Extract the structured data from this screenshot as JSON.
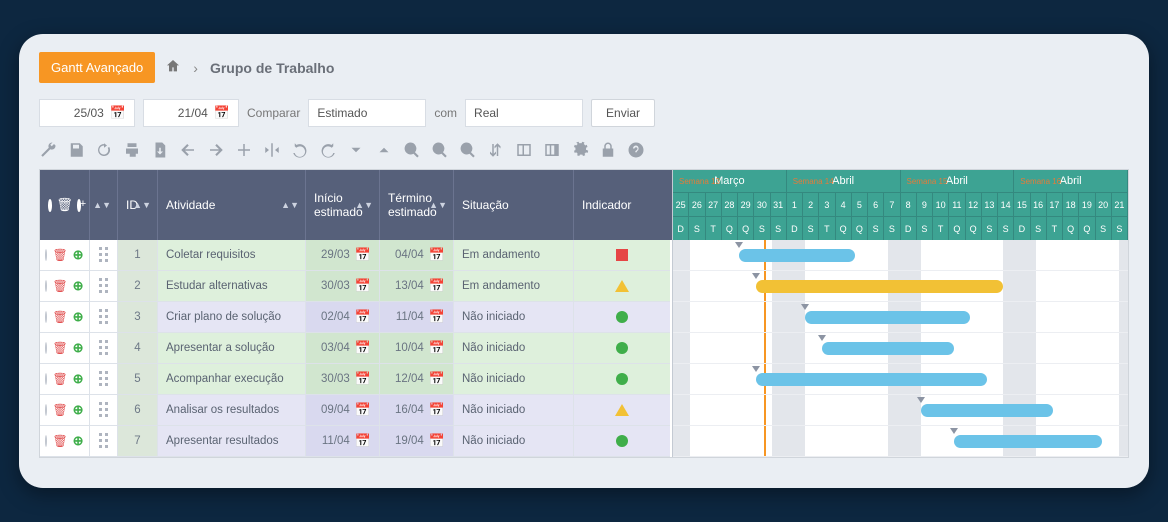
{
  "header": {
    "advanced_button": "Gantt Avançado",
    "breadcrumb": "Grupo de Trabalho"
  },
  "filters": {
    "date_from": "25/03",
    "date_to": "21/04",
    "compare_label": "Comparar",
    "compare_value": "Estimado",
    "with_label": "com",
    "with_value": "Real",
    "send": "Enviar"
  },
  "grid": {
    "columns": {
      "id": "ID",
      "activity": "Atividade",
      "start": "Início estimado",
      "end": "Término estimado",
      "status": "Situação",
      "indicator": "Indicador"
    }
  },
  "rows": [
    {
      "id": "1",
      "activity": "Coletar requisitos",
      "start": "29/03",
      "end": "04/04",
      "status": "Em andamento",
      "indicator": "square",
      "alt": false,
      "bar_color": "blue",
      "bar_start": 4,
      "bar_len": 7,
      "marker": 4
    },
    {
      "id": "2",
      "activity": "Estudar alternativas",
      "start": "30/03",
      "end": "13/04",
      "status": "Em andamento",
      "indicator": "triangle",
      "alt": false,
      "bar_color": "yellow",
      "bar_start": 5,
      "bar_len": 15,
      "marker": 5
    },
    {
      "id": "3",
      "activity": "Criar plano de solução",
      "start": "02/04",
      "end": "11/04",
      "status": "Não iniciado",
      "indicator": "circle",
      "alt": true,
      "bar_color": "blue",
      "bar_start": 8,
      "bar_len": 10,
      "marker": 8
    },
    {
      "id": "4",
      "activity": "Apresentar a solução",
      "start": "03/04",
      "end": "10/04",
      "status": "Não iniciado",
      "indicator": "circle",
      "alt": false,
      "bar_color": "blue",
      "bar_start": 9,
      "bar_len": 8,
      "marker": 9
    },
    {
      "id": "5",
      "activity": "Acompanhar execução",
      "start": "30/03",
      "end": "12/04",
      "status": "Não iniciado",
      "indicator": "circle",
      "alt": false,
      "bar_color": "blue",
      "bar_start": 5,
      "bar_len": 14,
      "marker": 5
    },
    {
      "id": "6",
      "activity": "Analisar os resultados",
      "start": "09/04",
      "end": "16/04",
      "status": "Não iniciado",
      "indicator": "triangle",
      "alt": true,
      "bar_color": "blue",
      "bar_start": 15,
      "bar_len": 8,
      "marker": 15
    },
    {
      "id": "7",
      "activity": "Apresentar resultados",
      "start": "11/04",
      "end": "19/04",
      "status": "Não iniciado",
      "indicator": "circle",
      "alt": true,
      "bar_color": "blue",
      "bar_start": 17,
      "bar_len": 9,
      "marker": 17
    }
  ],
  "gantt": {
    "cell_width": 16.5,
    "today_index": 5,
    "months": [
      {
        "label": "Março",
        "week": "Semana 13",
        "span": 7
      },
      {
        "label": "Abril",
        "week": "Semana 14",
        "span": 7
      },
      {
        "label": "Abril",
        "week": "Semana 15",
        "span": 7
      },
      {
        "label": "Abril",
        "week": "Semana 16",
        "span": 7
      }
    ],
    "days": [
      "25",
      "26",
      "27",
      "28",
      "29",
      "30",
      "31",
      "1",
      "2",
      "3",
      "4",
      "5",
      "6",
      "7",
      "8",
      "9",
      "10",
      "11",
      "12",
      "13",
      "14",
      "15",
      "16",
      "17",
      "18",
      "19",
      "20",
      "21"
    ],
    "dow": [
      "D",
      "S",
      "T",
      "Q",
      "Q",
      "S",
      "S",
      "D",
      "S",
      "T",
      "Q",
      "Q",
      "S",
      "S",
      "D",
      "S",
      "T",
      "Q",
      "Q",
      "S",
      "S",
      "D",
      "S",
      "T",
      "Q",
      "Q",
      "S",
      "S"
    ],
    "weekends": [
      0,
      6,
      7,
      13,
      14,
      20,
      21,
      27
    ]
  },
  "colors": {
    "bar_blue": "#6bc3e8",
    "bar_yellow": "#f2c135"
  }
}
